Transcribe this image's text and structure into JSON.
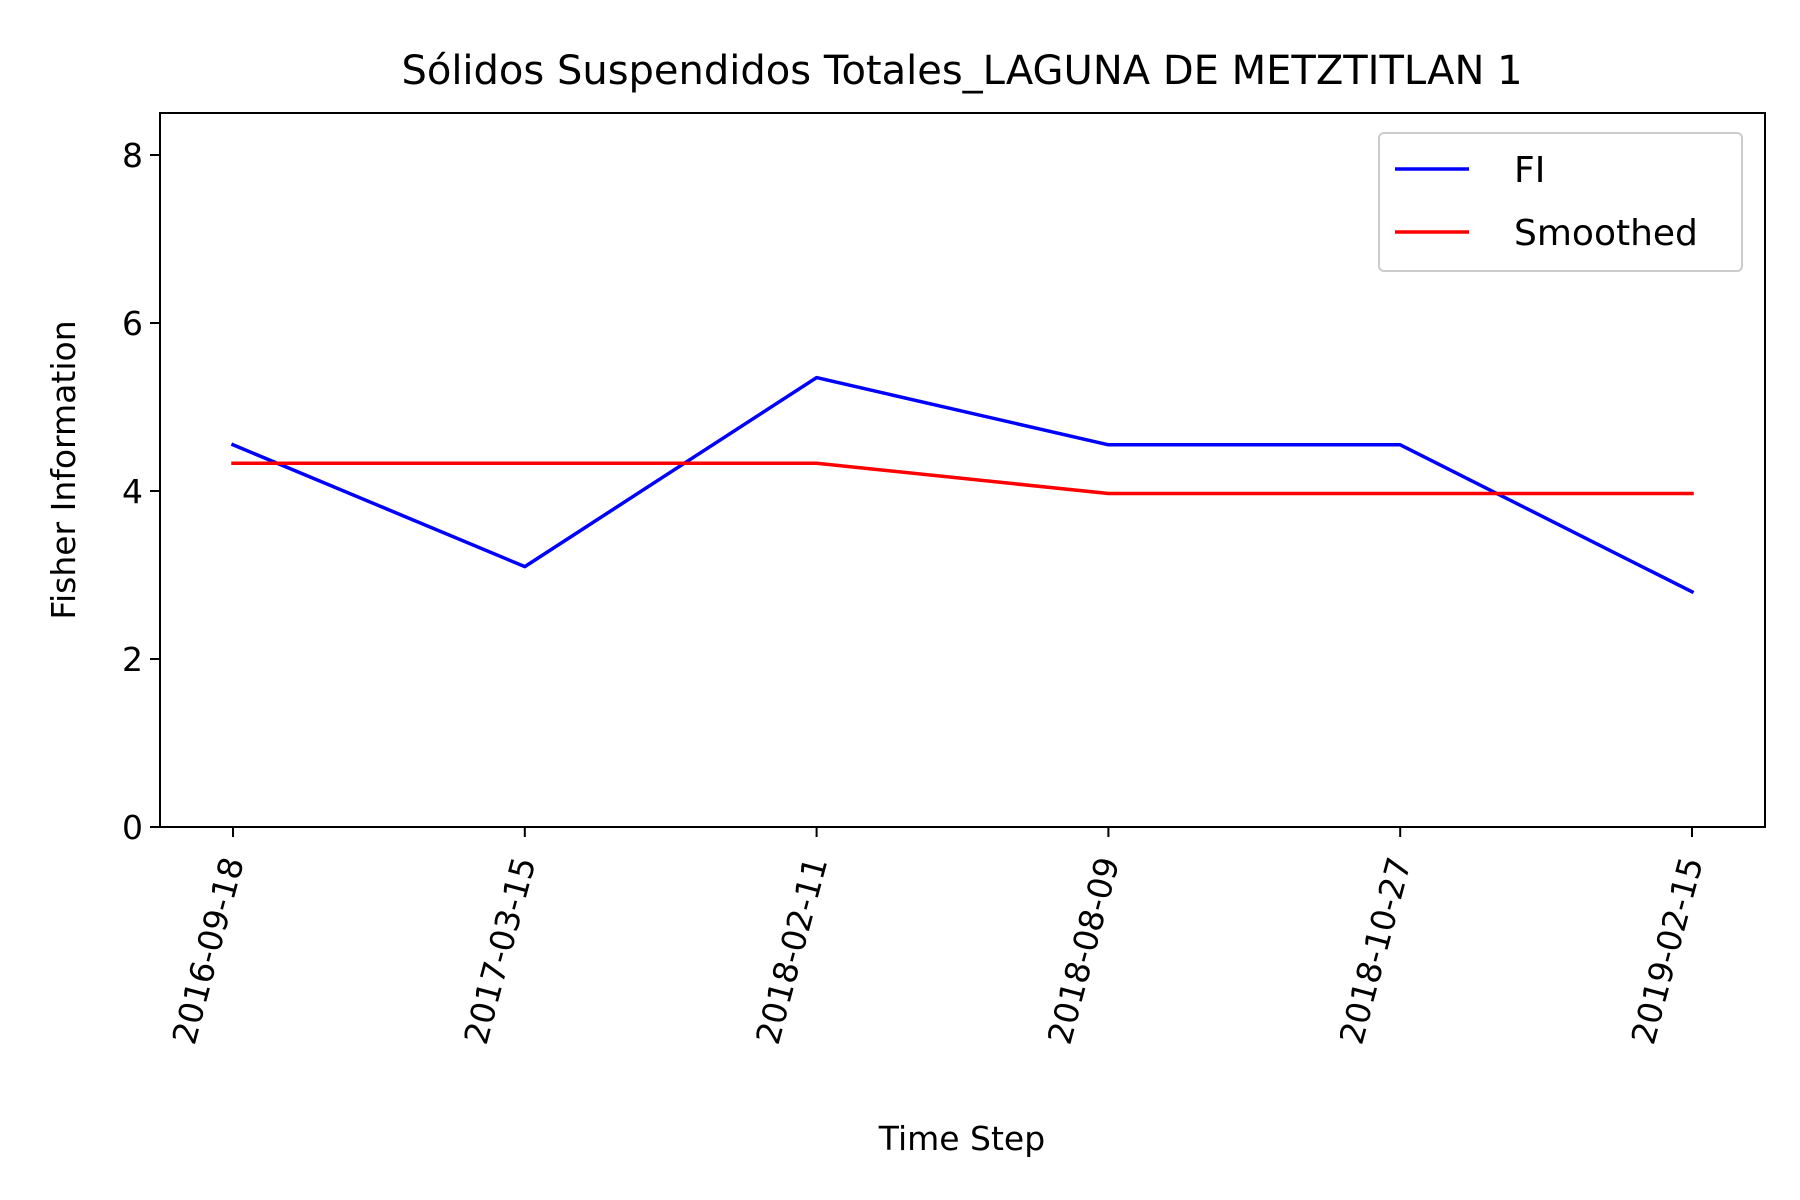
{
  "chart_data": {
    "type": "line",
    "title": "Sólidos Suspendidos Totales_LAGUNA DE METZTITLAN 1",
    "xlabel": "Time Step",
    "ylabel": "Fisher Information",
    "categories": [
      "2016-09-18",
      "2017-03-15",
      "2018-02-11",
      "2018-08-09",
      "2018-10-27",
      "2019-02-15"
    ],
    "yticks": [
      "0",
      "2",
      "4",
      "6",
      "8"
    ],
    "ylim": [
      0,
      8.5
    ],
    "grid": false,
    "legend_position": "top-right",
    "series": [
      {
        "name": "FI",
        "color": "#0000ff",
        "values": [
          4.55,
          3.1,
          5.35,
          4.55,
          4.55,
          2.8
        ]
      },
      {
        "name": "Smoothed",
        "color": "#ff0000",
        "values": [
          4.33,
          4.33,
          4.33,
          3.97,
          3.97,
          3.97
        ]
      }
    ]
  }
}
